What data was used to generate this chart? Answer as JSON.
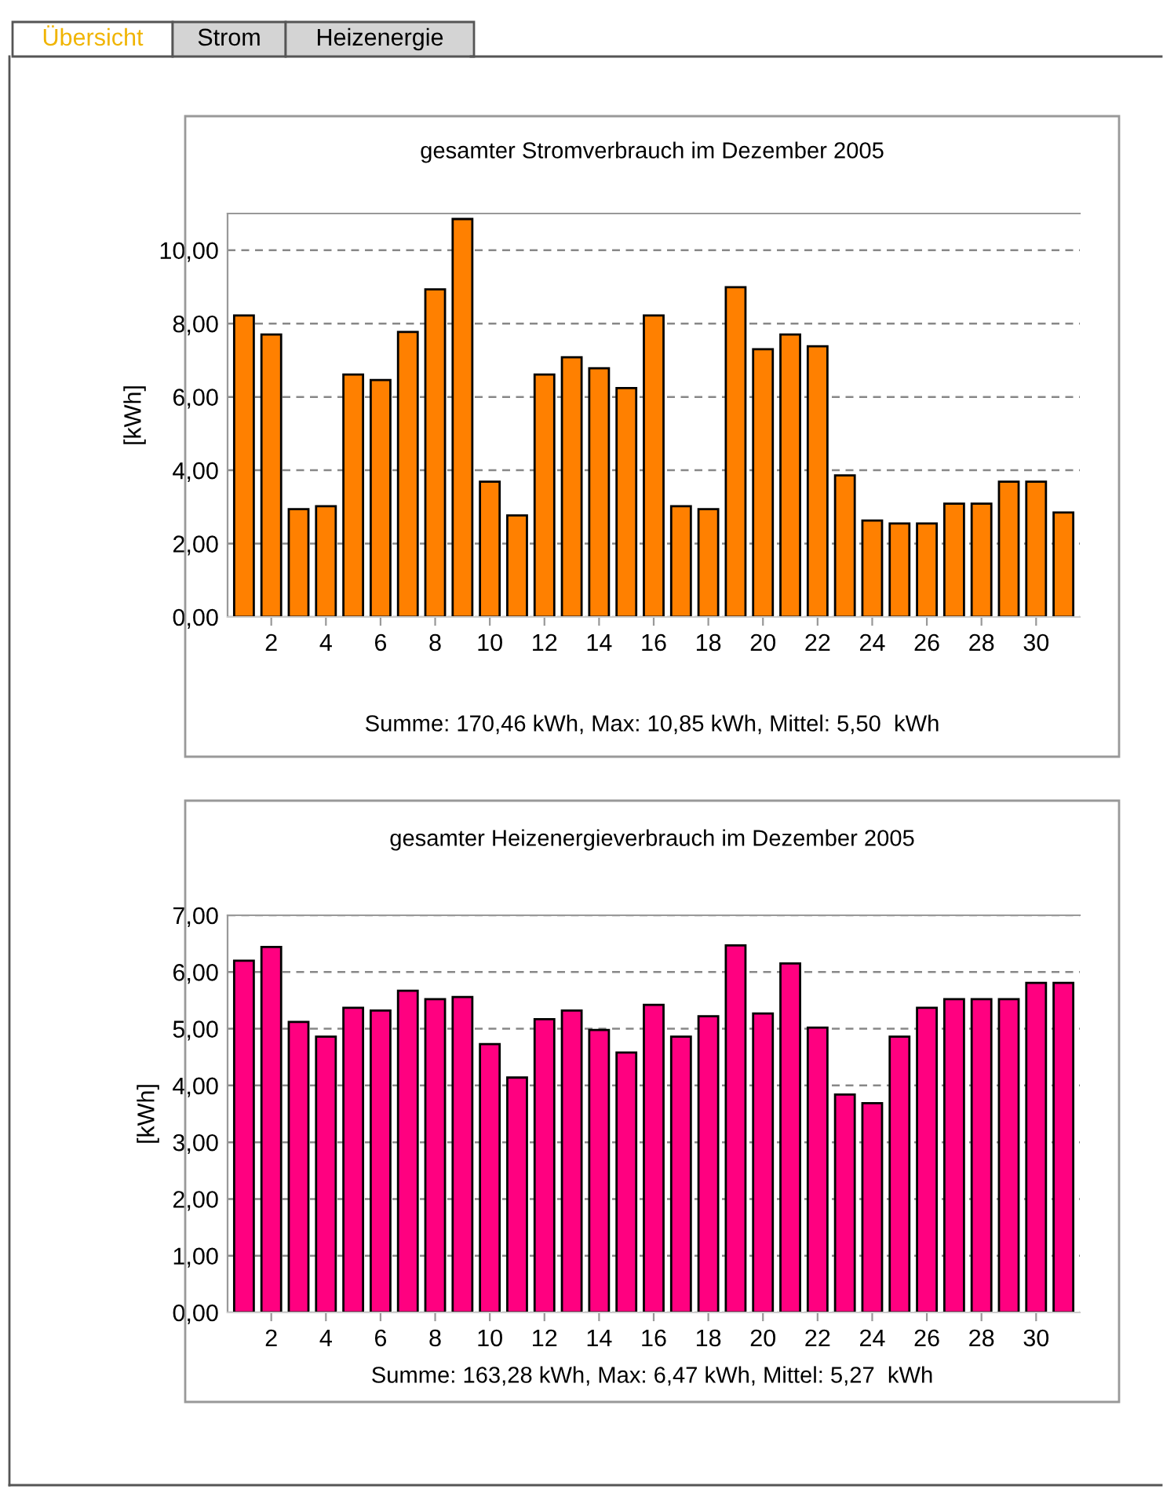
{
  "chart_data": [
    {
      "type": "bar",
      "title": "gesamter Stromverbrauch im Dezember 2005",
      "ylabel": "[kWh]",
      "categories": [
        null,
        "2",
        null,
        "4",
        null,
        "6",
        null,
        "8",
        null,
        "10",
        null,
        "12",
        null,
        "14",
        null,
        "16",
        null,
        "18",
        null,
        "20",
        null,
        "22",
        null,
        "24",
        null,
        "26",
        null,
        "28",
        null,
        "30",
        null
      ],
      "series": [
        {
          "color": "#ff8000",
          "values": [
            8.22,
            7.7,
            2.94,
            3.02,
            6.61,
            6.46,
            7.77,
            8.93,
            10.85,
            3.69,
            2.77,
            6.61,
            7.08,
            6.78,
            6.24,
            8.22,
            3.02,
            2.94,
            8.99,
            7.3,
            7.7,
            7.38,
            3.86,
            2.63,
            2.55,
            2.55,
            3.09,
            3.09,
            3.69,
            3.69,
            2.85
          ]
        }
      ],
      "ylim": [
        0,
        11
      ],
      "yticks": [
        {
          "value": 0,
          "label": "0,00"
        },
        {
          "value": 2,
          "label": "2,00"
        },
        {
          "value": 4,
          "label": "4,00"
        },
        {
          "value": 6,
          "label": "6,00"
        },
        {
          "value": 8,
          "label": "8,00"
        },
        {
          "value": 10,
          "label": "10,00"
        }
      ],
      "grid": "y",
      "annotations": [
        "Summe: 170,46 kWh, Max: 10,85 kWh, Mittel: 5,50  kWh",
        "Übersicht",
        "Strom",
        "Heizenergie"
      ]
    },
    {
      "type": "bar",
      "title": "gesamter Heizenergieverbrauch im Dezember 2005",
      "ylabel": "[kWh]",
      "categories": [
        null,
        "2",
        null,
        "4",
        null,
        "6",
        null,
        "8",
        null,
        "10",
        null,
        "12",
        null,
        "14",
        null,
        "16",
        null,
        "18",
        null,
        "20",
        null,
        "22",
        null,
        "24",
        null,
        "26",
        null,
        "28",
        null,
        "30",
        null
      ],
      "series": [
        {
          "color": "#ff0080",
          "values": [
            6.2,
            6.44,
            5.12,
            4.86,
            5.37,
            5.32,
            5.67,
            5.52,
            5.56,
            4.73,
            4.14,
            5.17,
            5.32,
            4.98,
            4.58,
            5.42,
            4.86,
            5.22,
            6.47,
            5.27,
            6.15,
            5.02,
            3.84,
            3.69,
            4.86,
            5.37,
            5.52,
            5.52,
            5.52,
            5.81,
            5.81
          ]
        }
      ],
      "ylim": [
        0,
        7
      ],
      "yticks": [
        {
          "value": 0,
          "label": "0,00"
        },
        {
          "value": 1,
          "label": "1,00"
        },
        {
          "value": 2,
          "label": "2,00"
        },
        {
          "value": 3,
          "label": "3,00"
        },
        {
          "value": 4,
          "label": "4,00"
        },
        {
          "value": 5,
          "label": "5,00"
        },
        {
          "value": 6,
          "label": "6,00"
        },
        {
          "value": 7,
          "label": "7,00"
        }
      ],
      "grid": "y",
      "annotations": [
        "Summe: 163,28 kWh, Max: 6,47 kWh, Mittel: 5,27  kWh"
      ]
    }
  ]
}
